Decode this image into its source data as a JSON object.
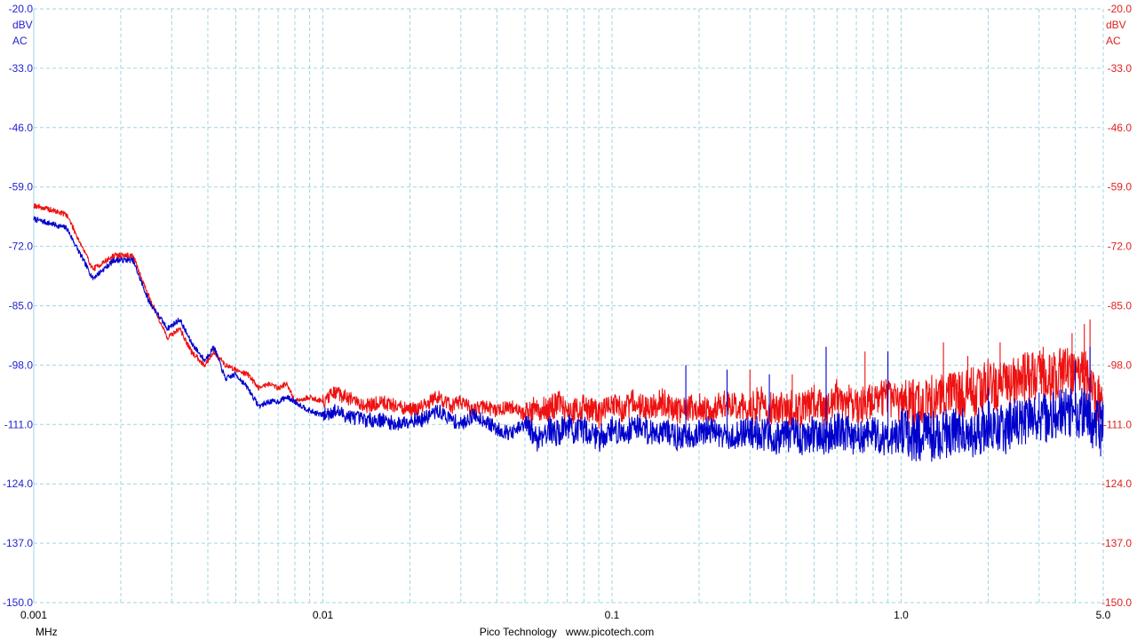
{
  "chart_data": {
    "type": "line",
    "x_scale": "log",
    "xlim": [
      0.001,
      5.0
    ],
    "ylim": [
      -150.0,
      -20.0
    ],
    "x_ticks": [
      "0.001",
      "0.01",
      "0.1",
      "1.0",
      "5.0"
    ],
    "x_unit": "MHz",
    "y_ticks_left": [
      "-20.0",
      "-33.0",
      "-46.0",
      "-59.0",
      "-72.0",
      "-85.0",
      "-98.0",
      "-111.0",
      "-124.0",
      "-137.0",
      "-150.0"
    ],
    "y_ticks_right": [
      "-20.0",
      "-33.0",
      "-46.0",
      "-59.0",
      "-72.0",
      "-85.0",
      "-98.0",
      "-111.0",
      "-124.0",
      "-137.0",
      "-150.0"
    ],
    "left_axis_unit": [
      "dBV",
      "AC"
    ],
    "right_axis_unit": [
      "dBV",
      "AC"
    ],
    "grid": true,
    "footer": "Pico Technology   www.picotech.com",
    "colors": {
      "series_a": "#0000cc",
      "series_b": "#ee1111",
      "grid": "#9fd6e0",
      "left_axis": "#1f1fd0",
      "right_axis": "#e02020"
    },
    "series": [
      {
        "color": "#0000cc",
        "x": [
          0.001,
          0.0013,
          0.0016,
          0.0019,
          0.0022,
          0.0025,
          0.0029,
          0.0032,
          0.0035,
          0.0039,
          0.0042,
          0.0046,
          0.005,
          0.0055,
          0.006,
          0.0065,
          0.007,
          0.0075,
          0.008,
          0.009,
          0.01,
          0.011,
          0.012,
          0.014,
          0.016,
          0.018,
          0.02,
          0.022,
          0.025,
          0.028,
          0.03,
          0.033,
          0.036,
          0.04,
          0.045,
          0.05,
          0.055,
          0.06,
          0.065,
          0.07,
          0.075,
          0.08,
          0.09,
          0.1,
          0.11,
          0.12,
          0.13,
          0.14,
          0.15,
          0.17,
          0.2,
          0.22,
          0.25,
          0.28,
          0.3,
          0.33,
          0.36,
          0.4,
          0.45,
          0.5,
          0.55,
          0.6,
          0.7,
          0.8,
          0.9,
          1.0,
          1.2,
          1.4,
          1.6,
          1.8,
          2.0,
          2.3,
          2.6,
          3.0,
          3.3,
          3.6,
          4.0,
          4.3,
          4.6,
          5.0
        ],
        "y": [
          -66.0,
          -68.0,
          -79.0,
          -75.0,
          -75.0,
          -84.0,
          -90.0,
          -88.0,
          -93.0,
          -97.0,
          -94.0,
          -101.0,
          -100.0,
          -103.0,
          -107.0,
          -106.0,
          -106.0,
          -105.0,
          -106.0,
          -108.0,
          -109.0,
          -108.0,
          -109.0,
          -110.0,
          -110.0,
          -111.0,
          -110.0,
          -110.0,
          -108.0,
          -110.0,
          -111.0,
          -109.0,
          -110.0,
          -112.0,
          -113.0,
          -111.0,
          -114.0,
          -112.0,
          -113.0,
          -111.0,
          -113.0,
          -112.0,
          -114.0,
          -112.0,
          -113.0,
          -111.0,
          -112.0,
          -113.0,
          -112.0,
          -114.0,
          -113.0,
          -112.0,
          -114.0,
          -113.0,
          -112.0,
          -113.0,
          -114.0,
          -113.0,
          -114.0,
          -113.0,
          -114.0,
          -112.0,
          -114.0,
          -113.0,
          -114.0,
          -113.0,
          -114.0,
          -113.0,
          -112.0,
          -113.0,
          -111.0,
          -112.0,
          -110.0,
          -110.0,
          -109.0,
          -108.0,
          -109.0,
          -108.0,
          -111.0,
          -111.0
        ],
        "spikes": [
          [
            0.18,
            -98.0
          ],
          [
            0.25,
            -99.0
          ],
          [
            0.35,
            -100.0
          ],
          [
            0.55,
            -94.0
          ],
          [
            0.9,
            -95.0
          ],
          [
            2.0,
            -103.0
          ],
          [
            3.0,
            -104.0
          ],
          [
            4.0,
            -97.0
          ],
          [
            4.5,
            -94.0
          ],
          [
            4.9,
            -118.0
          ]
        ]
      },
      {
        "color": "#ee1111",
        "x": [
          0.001,
          0.0013,
          0.0016,
          0.0019,
          0.0022,
          0.0025,
          0.0029,
          0.0032,
          0.0035,
          0.0039,
          0.0042,
          0.0046,
          0.005,
          0.0055,
          0.006,
          0.0065,
          0.007,
          0.0075,
          0.008,
          0.009,
          0.01,
          0.011,
          0.012,
          0.014,
          0.016,
          0.018,
          0.02,
          0.022,
          0.025,
          0.028,
          0.03,
          0.033,
          0.036,
          0.04,
          0.045,
          0.05,
          0.055,
          0.06,
          0.065,
          0.07,
          0.075,
          0.08,
          0.09,
          0.1,
          0.11,
          0.12,
          0.13,
          0.14,
          0.15,
          0.17,
          0.2,
          0.22,
          0.25,
          0.28,
          0.3,
          0.33,
          0.36,
          0.4,
          0.45,
          0.5,
          0.55,
          0.6,
          0.7,
          0.8,
          0.9,
          1.0,
          1.2,
          1.4,
          1.6,
          1.8,
          2.0,
          2.3,
          2.6,
          3.0,
          3.3,
          3.6,
          4.0,
          4.3,
          4.6,
          5.0
        ],
        "y": [
          -63.0,
          -65.0,
          -77.0,
          -74.0,
          -74.0,
          -83.0,
          -92.0,
          -90.0,
          -95.0,
          -98.0,
          -95.0,
          -98.0,
          -99.0,
          -100.0,
          -103.0,
          -102.0,
          -103.0,
          -102.0,
          -106.0,
          -105.0,
          -106.0,
          -104.0,
          -105.0,
          -107.0,
          -106.0,
          -107.0,
          -108.0,
          -107.0,
          -105.0,
          -107.0,
          -106.0,
          -108.0,
          -107.0,
          -108.0,
          -107.0,
          -109.0,
          -107.0,
          -108.0,
          -106.0,
          -109.0,
          -108.0,
          -107.0,
          -109.0,
          -107.0,
          -108.0,
          -106.0,
          -108.0,
          -107.0,
          -106.0,
          -108.0,
          -107.0,
          -108.0,
          -106.0,
          -107.0,
          -108.0,
          -106.0,
          -108.0,
          -107.0,
          -108.0,
          -106.0,
          -108.0,
          -105.0,
          -107.0,
          -106.0,
          -105.0,
          -107.0,
          -106.0,
          -105.0,
          -104.0,
          -104.0,
          -102.0,
          -103.0,
          -101.0,
          -100.0,
          -101.0,
          -99.0,
          -100.0,
          -99.0,
          -104.0,
          -107.0
        ],
        "spikes": [
          [
            0.3,
            -99.0
          ],
          [
            0.42,
            -100.0
          ],
          [
            0.75,
            -95.0
          ],
          [
            1.4,
            -93.0
          ],
          [
            1.7,
            -96.0
          ],
          [
            2.2,
            -93.0
          ],
          [
            3.1,
            -94.0
          ],
          [
            3.9,
            -91.0
          ],
          [
            4.3,
            -89.0
          ],
          [
            4.5,
            -88.0
          ]
        ]
      }
    ]
  }
}
